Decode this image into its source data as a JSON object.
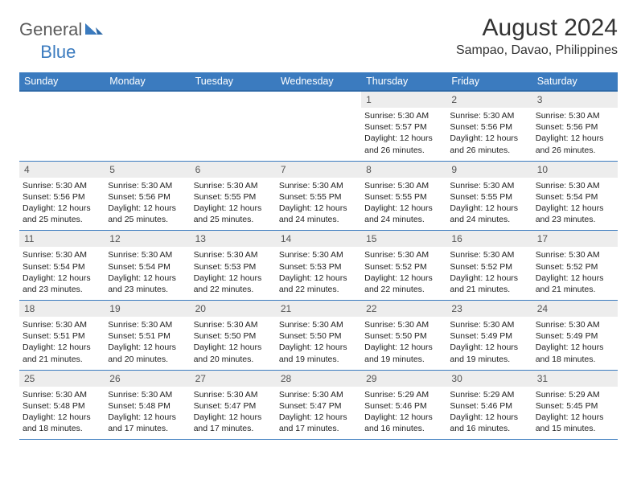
{
  "logo": {
    "general": "General",
    "blue": "Blue"
  },
  "title": "August 2024",
  "subtitle": "Sampao, Davao, Philippines",
  "colors": {
    "header_bg": "#3b7bbf",
    "header_border": "#2f6aa8",
    "daynum_bg": "#ededed",
    "row_border": "#3b7bbf",
    "title_color": "#333333",
    "text_color": "#222222"
  },
  "days_of_week": [
    "Sunday",
    "Monday",
    "Tuesday",
    "Wednesday",
    "Thursday",
    "Friday",
    "Saturday"
  ],
  "weeks": [
    [
      {
        "n": "",
        "sunrise": "",
        "sunset": "",
        "daylight": ""
      },
      {
        "n": "",
        "sunrise": "",
        "sunset": "",
        "daylight": ""
      },
      {
        "n": "",
        "sunrise": "",
        "sunset": "",
        "daylight": ""
      },
      {
        "n": "",
        "sunrise": "",
        "sunset": "",
        "daylight": ""
      },
      {
        "n": "1",
        "sunrise": "Sunrise: 5:30 AM",
        "sunset": "Sunset: 5:57 PM",
        "daylight": "Daylight: 12 hours and 26 minutes."
      },
      {
        "n": "2",
        "sunrise": "Sunrise: 5:30 AM",
        "sunset": "Sunset: 5:56 PM",
        "daylight": "Daylight: 12 hours and 26 minutes."
      },
      {
        "n": "3",
        "sunrise": "Sunrise: 5:30 AM",
        "sunset": "Sunset: 5:56 PM",
        "daylight": "Daylight: 12 hours and 26 minutes."
      }
    ],
    [
      {
        "n": "4",
        "sunrise": "Sunrise: 5:30 AM",
        "sunset": "Sunset: 5:56 PM",
        "daylight": "Daylight: 12 hours and 25 minutes."
      },
      {
        "n": "5",
        "sunrise": "Sunrise: 5:30 AM",
        "sunset": "Sunset: 5:56 PM",
        "daylight": "Daylight: 12 hours and 25 minutes."
      },
      {
        "n": "6",
        "sunrise": "Sunrise: 5:30 AM",
        "sunset": "Sunset: 5:55 PM",
        "daylight": "Daylight: 12 hours and 25 minutes."
      },
      {
        "n": "7",
        "sunrise": "Sunrise: 5:30 AM",
        "sunset": "Sunset: 5:55 PM",
        "daylight": "Daylight: 12 hours and 24 minutes."
      },
      {
        "n": "8",
        "sunrise": "Sunrise: 5:30 AM",
        "sunset": "Sunset: 5:55 PM",
        "daylight": "Daylight: 12 hours and 24 minutes."
      },
      {
        "n": "9",
        "sunrise": "Sunrise: 5:30 AM",
        "sunset": "Sunset: 5:55 PM",
        "daylight": "Daylight: 12 hours and 24 minutes."
      },
      {
        "n": "10",
        "sunrise": "Sunrise: 5:30 AM",
        "sunset": "Sunset: 5:54 PM",
        "daylight": "Daylight: 12 hours and 23 minutes."
      }
    ],
    [
      {
        "n": "11",
        "sunrise": "Sunrise: 5:30 AM",
        "sunset": "Sunset: 5:54 PM",
        "daylight": "Daylight: 12 hours and 23 minutes."
      },
      {
        "n": "12",
        "sunrise": "Sunrise: 5:30 AM",
        "sunset": "Sunset: 5:54 PM",
        "daylight": "Daylight: 12 hours and 23 minutes."
      },
      {
        "n": "13",
        "sunrise": "Sunrise: 5:30 AM",
        "sunset": "Sunset: 5:53 PM",
        "daylight": "Daylight: 12 hours and 22 minutes."
      },
      {
        "n": "14",
        "sunrise": "Sunrise: 5:30 AM",
        "sunset": "Sunset: 5:53 PM",
        "daylight": "Daylight: 12 hours and 22 minutes."
      },
      {
        "n": "15",
        "sunrise": "Sunrise: 5:30 AM",
        "sunset": "Sunset: 5:52 PM",
        "daylight": "Daylight: 12 hours and 22 minutes."
      },
      {
        "n": "16",
        "sunrise": "Sunrise: 5:30 AM",
        "sunset": "Sunset: 5:52 PM",
        "daylight": "Daylight: 12 hours and 21 minutes."
      },
      {
        "n": "17",
        "sunrise": "Sunrise: 5:30 AM",
        "sunset": "Sunset: 5:52 PM",
        "daylight": "Daylight: 12 hours and 21 minutes."
      }
    ],
    [
      {
        "n": "18",
        "sunrise": "Sunrise: 5:30 AM",
        "sunset": "Sunset: 5:51 PM",
        "daylight": "Daylight: 12 hours and 21 minutes."
      },
      {
        "n": "19",
        "sunrise": "Sunrise: 5:30 AM",
        "sunset": "Sunset: 5:51 PM",
        "daylight": "Daylight: 12 hours and 20 minutes."
      },
      {
        "n": "20",
        "sunrise": "Sunrise: 5:30 AM",
        "sunset": "Sunset: 5:50 PM",
        "daylight": "Daylight: 12 hours and 20 minutes."
      },
      {
        "n": "21",
        "sunrise": "Sunrise: 5:30 AM",
        "sunset": "Sunset: 5:50 PM",
        "daylight": "Daylight: 12 hours and 19 minutes."
      },
      {
        "n": "22",
        "sunrise": "Sunrise: 5:30 AM",
        "sunset": "Sunset: 5:50 PM",
        "daylight": "Daylight: 12 hours and 19 minutes."
      },
      {
        "n": "23",
        "sunrise": "Sunrise: 5:30 AM",
        "sunset": "Sunset: 5:49 PM",
        "daylight": "Daylight: 12 hours and 19 minutes."
      },
      {
        "n": "24",
        "sunrise": "Sunrise: 5:30 AM",
        "sunset": "Sunset: 5:49 PM",
        "daylight": "Daylight: 12 hours and 18 minutes."
      }
    ],
    [
      {
        "n": "25",
        "sunrise": "Sunrise: 5:30 AM",
        "sunset": "Sunset: 5:48 PM",
        "daylight": "Daylight: 12 hours and 18 minutes."
      },
      {
        "n": "26",
        "sunrise": "Sunrise: 5:30 AM",
        "sunset": "Sunset: 5:48 PM",
        "daylight": "Daylight: 12 hours and 17 minutes."
      },
      {
        "n": "27",
        "sunrise": "Sunrise: 5:30 AM",
        "sunset": "Sunset: 5:47 PM",
        "daylight": "Daylight: 12 hours and 17 minutes."
      },
      {
        "n": "28",
        "sunrise": "Sunrise: 5:30 AM",
        "sunset": "Sunset: 5:47 PM",
        "daylight": "Daylight: 12 hours and 17 minutes."
      },
      {
        "n": "29",
        "sunrise": "Sunrise: 5:29 AM",
        "sunset": "Sunset: 5:46 PM",
        "daylight": "Daylight: 12 hours and 16 minutes."
      },
      {
        "n": "30",
        "sunrise": "Sunrise: 5:29 AM",
        "sunset": "Sunset: 5:46 PM",
        "daylight": "Daylight: 12 hours and 16 minutes."
      },
      {
        "n": "31",
        "sunrise": "Sunrise: 5:29 AM",
        "sunset": "Sunset: 5:45 PM",
        "daylight": "Daylight: 12 hours and 15 minutes."
      }
    ]
  ]
}
